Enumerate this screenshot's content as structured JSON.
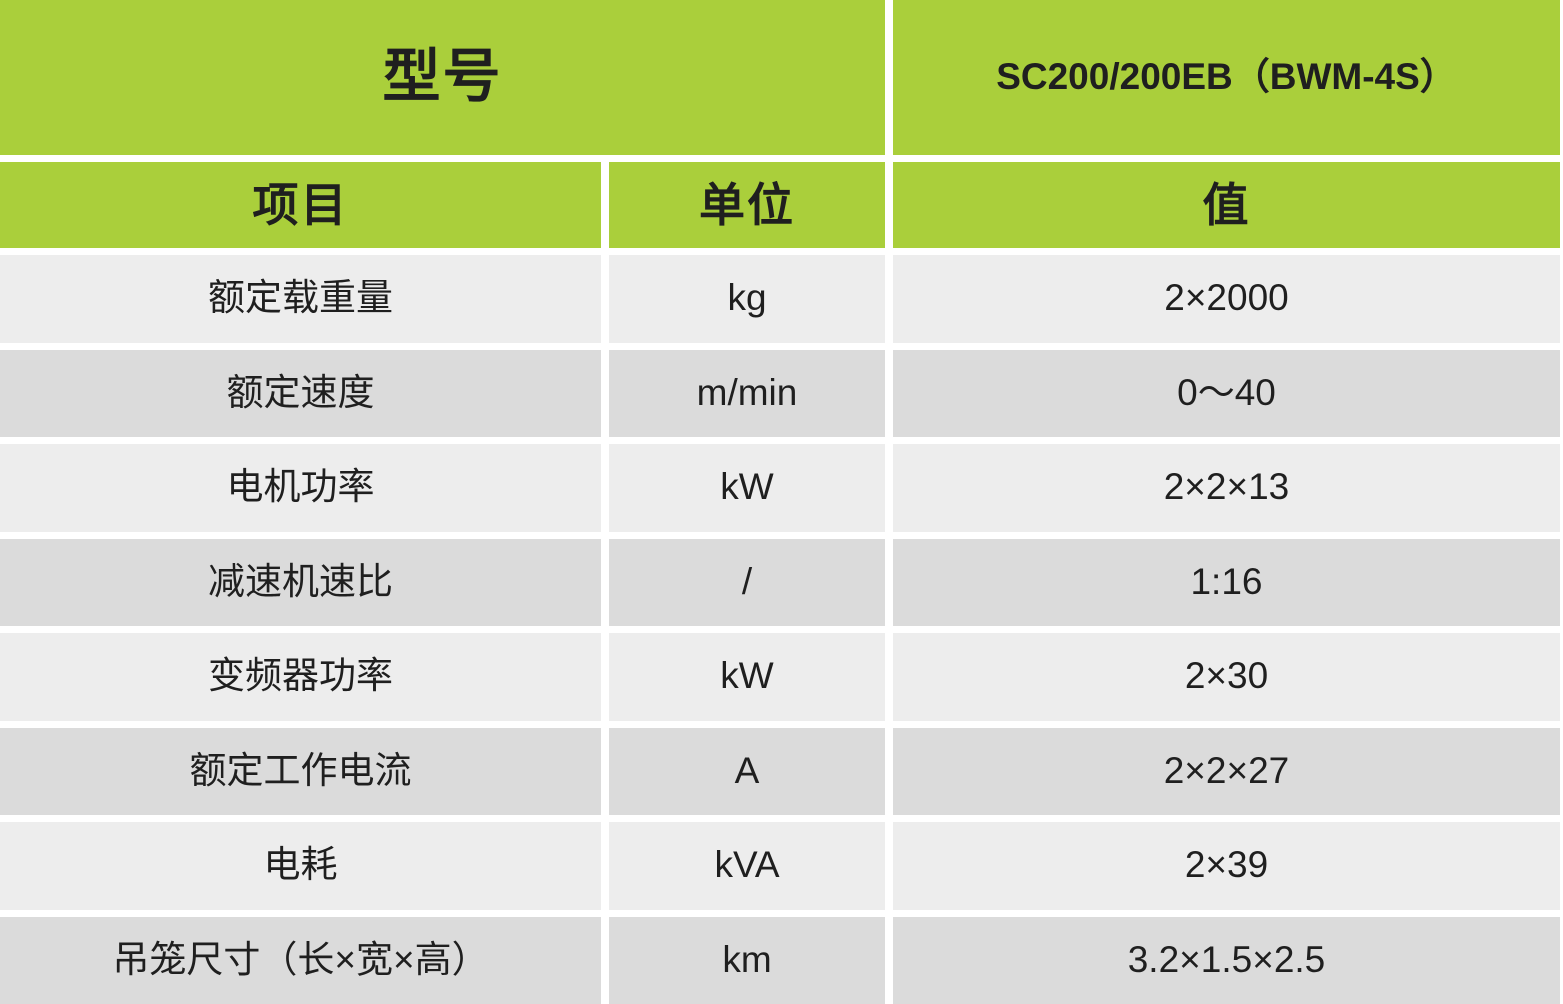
{
  "table": {
    "header": {
      "model_label": "型号",
      "model_value": "SC200/200EB（BWM-4S）",
      "columns": {
        "item": "项目",
        "unit": "单位",
        "value": "值"
      }
    },
    "rows": [
      {
        "item": "额定载重量",
        "unit": "kg",
        "value": "2×2000"
      },
      {
        "item": "额定速度",
        "unit": "m/min",
        "value": "0～40"
      },
      {
        "item": "电机功率",
        "unit": "kW",
        "value": "2×2×13"
      },
      {
        "item": "减速机速比",
        "unit": "/",
        "value": "1:16"
      },
      {
        "item": "变频器功率",
        "unit": "kW",
        "value": "2×30"
      },
      {
        "item": "额定工作电流",
        "unit": "A",
        "value": "2×2×27"
      },
      {
        "item": "电耗",
        "unit": "kVA",
        "value": "2×39"
      },
      {
        "item": "吊笼尺寸（长×宽×高）",
        "unit": "km",
        "value": "3.2×1.5×2.5"
      }
    ],
    "colors": {
      "accent_green": "#aacf3b",
      "row_light": "#ededed",
      "row_dark": "#dbdbdb",
      "gutter_white": "#ffffff",
      "text": "#1f1f1f"
    }
  }
}
